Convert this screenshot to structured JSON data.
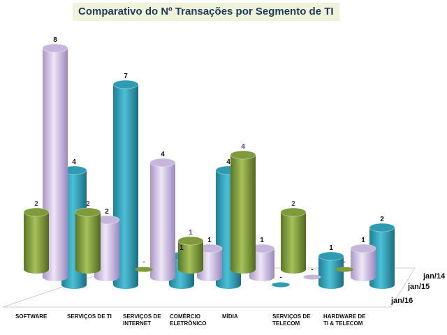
{
  "chart_data": {
    "type": "bar",
    "style": "3d-cylinder",
    "title": "Comparativo do Nº Transações por Segmento de TI",
    "categories": [
      "SOFTWARE",
      "SERVIÇOS DE TI",
      "SERVIÇOS DE INTERNET",
      "COMÉRCIO ELETRÔNICO",
      "MÍDIA",
      "SERVIÇOS DE TELECOM",
      "HARDWARE  DE TI & TELECOM"
    ],
    "category_label_lines": [
      [
        "SOFTWARE"
      ],
      [
        "SERVIÇOS DE TI"
      ],
      [
        "SERVIÇOS DE",
        "INTERNET"
      ],
      [
        "COMÉRCIO",
        "ELETRÔNICO"
      ],
      [
        "MÍDIA"
      ],
      [
        "SERVIÇOS DE",
        "TELECOM"
      ],
      [
        "HARDWARE  DE",
        "TI & TELECOM"
      ]
    ],
    "series": [
      {
        "name": "jan/14",
        "color": "#2e9bb2",
        "values": [
          4,
          7,
          1,
          4,
          0,
          1,
          2
        ],
        "labels": [
          "4",
          "7",
          "1",
          "4",
          "-",
          "1",
          "2"
        ]
      },
      {
        "name": "jan/15",
        "color": "#c7b6dc",
        "values": [
          8,
          2,
          4,
          1,
          1,
          0,
          1
        ],
        "labels": [
          "8",
          "2",
          "4",
          "1",
          "1",
          "-",
          "1"
        ]
      },
      {
        "name": "jan/16",
        "color": "#7e9a3a",
        "values": [
          2,
          2,
          0,
          1,
          4,
          2,
          0
        ],
        "labels": [
          "2",
          "2",
          "-",
          "1",
          "4",
          "2",
          "-"
        ]
      }
    ],
    "label_colors": {
      "jan/14": "#111111",
      "jan/15": "#111111",
      "jan/16": "#5a3f8a"
    },
    "grid": false,
    "legend": "none"
  }
}
